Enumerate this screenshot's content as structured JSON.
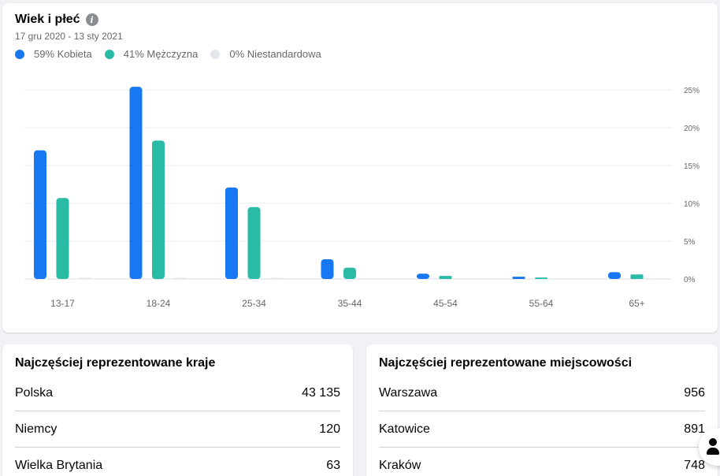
{
  "chart_card": {
    "title": "Wiek i płeć",
    "date_range": "17 gru 2020 - 13 sty 2021"
  },
  "chart_data": {
    "type": "bar",
    "title": "Wiek i płeć",
    "subtitle": "17 gru 2020 - 13 sty 2021",
    "categories": [
      "13-17",
      "18-24",
      "25-34",
      "35-44",
      "45-54",
      "55-64",
      "65+"
    ],
    "series": [
      {
        "name": "59% Kobieta",
        "color": "#1877f2",
        "values": [
          17.0,
          25.4,
          12.1,
          2.6,
          0.7,
          0.3,
          0.9
        ]
      },
      {
        "name": "41% Mężczyzna",
        "color": "#2abba7",
        "values": [
          10.7,
          18.3,
          9.5,
          1.5,
          0.4,
          0.2,
          0.6
        ]
      },
      {
        "name": "0% Niestandardowa",
        "color": "#e4e6eb",
        "values": [
          0.05,
          0.05,
          0.05,
          0.0,
          0.0,
          0.0,
          0.0
        ]
      }
    ],
    "y_ticks": [
      "0%",
      "5%",
      "10%",
      "15%",
      "20%",
      "25%"
    ],
    "y_tick_values": [
      0,
      5,
      10,
      15,
      20,
      25
    ],
    "ylim": [
      0,
      25
    ],
    "y_axis_position": "right",
    "grid": true,
    "legend_position": "top-left"
  },
  "countries": {
    "title": "Najczęściej reprezentowane kraje",
    "rows": [
      {
        "name": "Polska",
        "value": "43 135"
      },
      {
        "name": "Niemcy",
        "value": "120"
      },
      {
        "name": "Wielka Brytania",
        "value": "63"
      }
    ]
  },
  "cities": {
    "title": "Najczęściej reprezentowane miejscowości",
    "rows": [
      {
        "name": "Warszawa",
        "value": "956"
      },
      {
        "name": "Katowice",
        "value": "891"
      },
      {
        "name": "Kraków",
        "value": "748"
      }
    ]
  },
  "icons": {
    "info": "info-icon",
    "fab": "person-icon"
  }
}
